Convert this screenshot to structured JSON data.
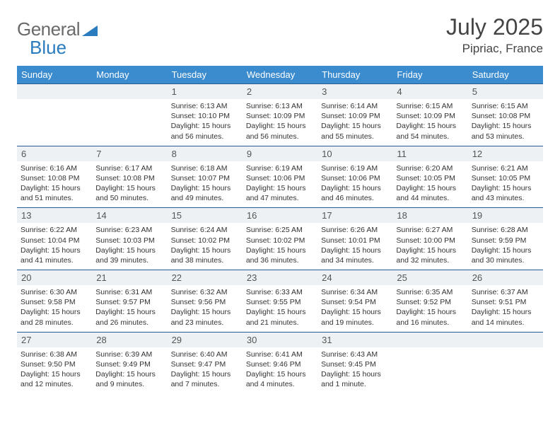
{
  "logo": {
    "text1": "General",
    "text2": "Blue"
  },
  "header": {
    "month": "July 2025",
    "location": "Pipriac, France"
  },
  "colors": {
    "header_bg": "#3b8bcf",
    "header_text": "#ffffff",
    "daynum_bg": "#eef1f3",
    "daynum_border": "#2a5a8f",
    "body_text": "#333333",
    "title_text": "#444444",
    "logo_gray": "#6a6a6a",
    "logo_blue": "#2b7bbf"
  },
  "typography": {
    "month_fontsize": 32,
    "location_fontsize": 17,
    "dayheader_fontsize": 13,
    "daynum_fontsize": 13,
    "body_fontsize": 10.5
  },
  "dayNames": [
    "Sunday",
    "Monday",
    "Tuesday",
    "Wednesday",
    "Thursday",
    "Friday",
    "Saturday"
  ],
  "weeks": [
    [
      null,
      null,
      {
        "n": "1",
        "sr": "6:13 AM",
        "ss": "10:10 PM",
        "dl": "15 hours and 56 minutes."
      },
      {
        "n": "2",
        "sr": "6:13 AM",
        "ss": "10:09 PM",
        "dl": "15 hours and 56 minutes."
      },
      {
        "n": "3",
        "sr": "6:14 AM",
        "ss": "10:09 PM",
        "dl": "15 hours and 55 minutes."
      },
      {
        "n": "4",
        "sr": "6:15 AM",
        "ss": "10:09 PM",
        "dl": "15 hours and 54 minutes."
      },
      {
        "n": "5",
        "sr": "6:15 AM",
        "ss": "10:08 PM",
        "dl": "15 hours and 53 minutes."
      }
    ],
    [
      {
        "n": "6",
        "sr": "6:16 AM",
        "ss": "10:08 PM",
        "dl": "15 hours and 51 minutes."
      },
      {
        "n": "7",
        "sr": "6:17 AM",
        "ss": "10:08 PM",
        "dl": "15 hours and 50 minutes."
      },
      {
        "n": "8",
        "sr": "6:18 AM",
        "ss": "10:07 PM",
        "dl": "15 hours and 49 minutes."
      },
      {
        "n": "9",
        "sr": "6:19 AM",
        "ss": "10:06 PM",
        "dl": "15 hours and 47 minutes."
      },
      {
        "n": "10",
        "sr": "6:19 AM",
        "ss": "10:06 PM",
        "dl": "15 hours and 46 minutes."
      },
      {
        "n": "11",
        "sr": "6:20 AM",
        "ss": "10:05 PM",
        "dl": "15 hours and 44 minutes."
      },
      {
        "n": "12",
        "sr": "6:21 AM",
        "ss": "10:05 PM",
        "dl": "15 hours and 43 minutes."
      }
    ],
    [
      {
        "n": "13",
        "sr": "6:22 AM",
        "ss": "10:04 PM",
        "dl": "15 hours and 41 minutes."
      },
      {
        "n": "14",
        "sr": "6:23 AM",
        "ss": "10:03 PM",
        "dl": "15 hours and 39 minutes."
      },
      {
        "n": "15",
        "sr": "6:24 AM",
        "ss": "10:02 PM",
        "dl": "15 hours and 38 minutes."
      },
      {
        "n": "16",
        "sr": "6:25 AM",
        "ss": "10:02 PM",
        "dl": "15 hours and 36 minutes."
      },
      {
        "n": "17",
        "sr": "6:26 AM",
        "ss": "10:01 PM",
        "dl": "15 hours and 34 minutes."
      },
      {
        "n": "18",
        "sr": "6:27 AM",
        "ss": "10:00 PM",
        "dl": "15 hours and 32 minutes."
      },
      {
        "n": "19",
        "sr": "6:28 AM",
        "ss": "9:59 PM",
        "dl": "15 hours and 30 minutes."
      }
    ],
    [
      {
        "n": "20",
        "sr": "6:30 AM",
        "ss": "9:58 PM",
        "dl": "15 hours and 28 minutes."
      },
      {
        "n": "21",
        "sr": "6:31 AM",
        "ss": "9:57 PM",
        "dl": "15 hours and 26 minutes."
      },
      {
        "n": "22",
        "sr": "6:32 AM",
        "ss": "9:56 PM",
        "dl": "15 hours and 23 minutes."
      },
      {
        "n": "23",
        "sr": "6:33 AM",
        "ss": "9:55 PM",
        "dl": "15 hours and 21 minutes."
      },
      {
        "n": "24",
        "sr": "6:34 AM",
        "ss": "9:54 PM",
        "dl": "15 hours and 19 minutes."
      },
      {
        "n": "25",
        "sr": "6:35 AM",
        "ss": "9:52 PM",
        "dl": "15 hours and 16 minutes."
      },
      {
        "n": "26",
        "sr": "6:37 AM",
        "ss": "9:51 PM",
        "dl": "15 hours and 14 minutes."
      }
    ],
    [
      {
        "n": "27",
        "sr": "6:38 AM",
        "ss": "9:50 PM",
        "dl": "15 hours and 12 minutes."
      },
      {
        "n": "28",
        "sr": "6:39 AM",
        "ss": "9:49 PM",
        "dl": "15 hours and 9 minutes."
      },
      {
        "n": "29",
        "sr": "6:40 AM",
        "ss": "9:47 PM",
        "dl": "15 hours and 7 minutes."
      },
      {
        "n": "30",
        "sr": "6:41 AM",
        "ss": "9:46 PM",
        "dl": "15 hours and 4 minutes."
      },
      {
        "n": "31",
        "sr": "6:43 AM",
        "ss": "9:45 PM",
        "dl": "15 hours and 1 minute."
      },
      null,
      null
    ]
  ],
  "labels": {
    "sunrise": "Sunrise:",
    "sunset": "Sunset:",
    "daylight": "Daylight:"
  }
}
